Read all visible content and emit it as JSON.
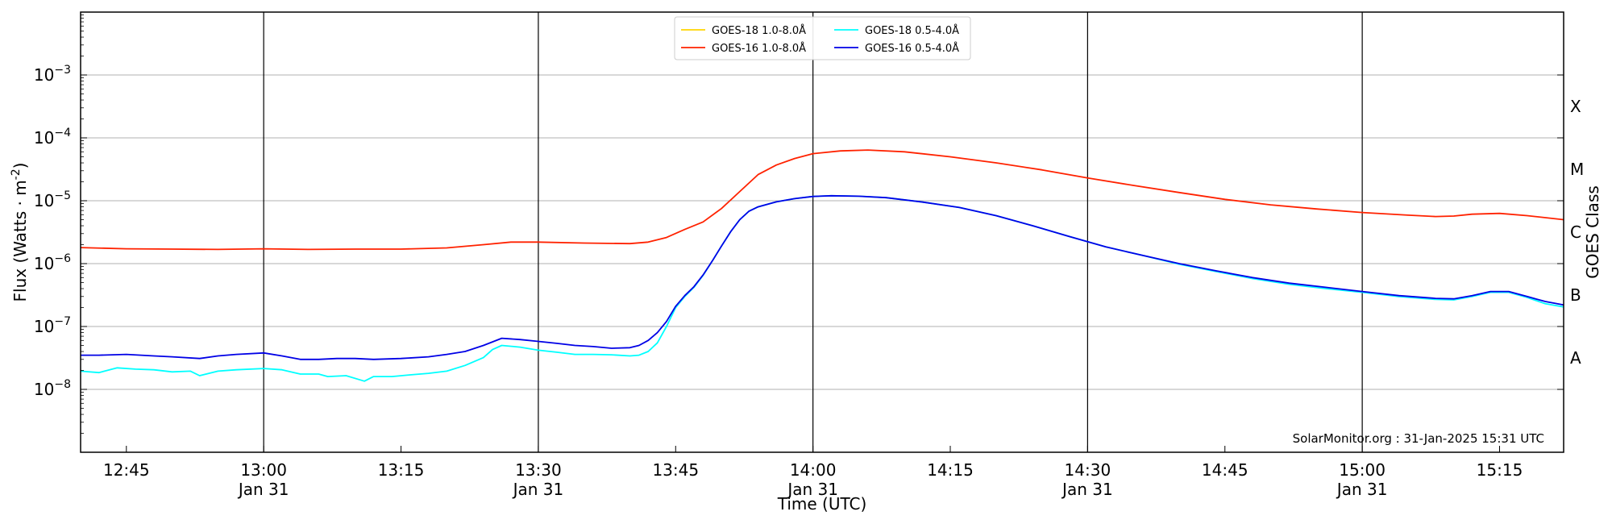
{
  "chart_data": {
    "type": "line",
    "xlabel": "Time (UTC)",
    "ylabel": "Flux (Watts · m",
    "ylabel_sup": "-2",
    "ylabel_close": ")",
    "right_label": "GOES Class",
    "xlim": [
      "12:40",
      "15:22"
    ],
    "ylim": [
      1e-09,
      0.01
    ],
    "yscale": "log",
    "grid": "horizontal",
    "legend_position": "top-center",
    "credit": "SolarMonitor.org : 31-Jan-2025 15:31 UTC",
    "x_ticks": [
      {
        "time": "12:45",
        "label": "12:45",
        "date": ""
      },
      {
        "time": "13:00",
        "label": "13:00",
        "date": "Jan 31"
      },
      {
        "time": "13:15",
        "label": "13:15",
        "date": ""
      },
      {
        "time": "13:30",
        "label": "13:30",
        "date": "Jan 31"
      },
      {
        "time": "13:45",
        "label": "13:45",
        "date": ""
      },
      {
        "time": "14:00",
        "label": "14:00",
        "date": "Jan 31"
      },
      {
        "time": "14:15",
        "label": "14:15",
        "date": ""
      },
      {
        "time": "14:30",
        "label": "14:30",
        "date": "Jan 31"
      },
      {
        "time": "14:45",
        "label": "14:45",
        "date": ""
      },
      {
        "time": "15:00",
        "label": "15:00",
        "date": "Jan 31"
      },
      {
        "time": "15:15",
        "label": "15:15",
        "date": ""
      }
    ],
    "y_ticks": [
      {
        "value": 1e-08,
        "base": "10",
        "exp": "−8"
      },
      {
        "value": 1e-07,
        "base": "10",
        "exp": "−7"
      },
      {
        "value": 1e-06,
        "base": "10",
        "exp": "−6"
      },
      {
        "value": 1e-05,
        "base": "10",
        "exp": "−5"
      },
      {
        "value": 0.0001,
        "base": "10",
        "exp": "−4"
      },
      {
        "value": 0.001,
        "base": "10",
        "exp": "−3"
      }
    ],
    "classes": [
      {
        "label": "A",
        "value": 3.16e-08
      },
      {
        "label": "B",
        "value": 3.16e-07
      },
      {
        "label": "C",
        "value": 3.16e-06
      },
      {
        "label": "M",
        "value": 3.16e-05
      },
      {
        "label": "X",
        "value": 0.000316
      }
    ],
    "vlines": [
      "13:00",
      "13:30",
      "14:00",
      "14:30",
      "15:00"
    ],
    "series": [
      {
        "name": "GOES-18 1.0-8.0Å",
        "color": "#ffd400",
        "legend_only": true,
        "points": []
      },
      {
        "name": "GOES-18 0.5-4.0Å",
        "color": "#00ffff",
        "points": [
          [
            "12:40",
            1.95e-08
          ],
          [
            "12:42",
            1.85e-08
          ],
          [
            "12:44",
            2.2e-08
          ],
          [
            "12:46",
            2.1e-08
          ],
          [
            "12:48",
            2.05e-08
          ],
          [
            "12:50",
            1.9e-08
          ],
          [
            "12:52",
            1.95e-08
          ],
          [
            "12:53",
            1.65e-08
          ],
          [
            "12:55",
            1.95e-08
          ],
          [
            "12:57",
            2.05e-08
          ],
          [
            "13:00",
            2.15e-08
          ],
          [
            "13:02",
            2.05e-08
          ],
          [
            "13:04",
            1.75e-08
          ],
          [
            "13:06",
            1.75e-08
          ],
          [
            "13:07",
            1.6e-08
          ],
          [
            "13:09",
            1.65e-08
          ],
          [
            "13:11",
            1.35e-08
          ],
          [
            "13:12",
            1.6e-08
          ],
          [
            "13:14",
            1.6e-08
          ],
          [
            "13:16",
            1.7e-08
          ],
          [
            "13:18",
            1.8e-08
          ],
          [
            "13:20",
            1.95e-08
          ],
          [
            "13:22",
            2.4e-08
          ],
          [
            "13:24",
            3.2e-08
          ],
          [
            "13:25",
            4.3e-08
          ],
          [
            "13:26",
            5e-08
          ],
          [
            "13:28",
            4.7e-08
          ],
          [
            "13:30",
            4.2e-08
          ],
          [
            "13:32",
            3.9e-08
          ],
          [
            "13:34",
            3.6e-08
          ],
          [
            "13:36",
            3.6e-08
          ],
          [
            "13:38",
            3.55e-08
          ],
          [
            "13:40",
            3.4e-08
          ],
          [
            "13:41",
            3.5e-08
          ],
          [
            "13:42",
            4e-08
          ],
          [
            "13:43",
            5.5e-08
          ],
          [
            "13:44",
            1e-07
          ],
          [
            "13:45",
            2e-07
          ],
          [
            "13:46",
            3e-07
          ],
          [
            "13:47",
            4.2e-07
          ],
          [
            "13:48",
            6.5e-07
          ],
          [
            "13:49",
            1.1e-06
          ],
          [
            "13:50",
            1.9e-06
          ],
          [
            "13:51",
            3.2e-06
          ],
          [
            "13:52",
            5e-06
          ],
          [
            "13:53",
            6.8e-06
          ],
          [
            "13:54",
            8e-06
          ],
          [
            "13:56",
            9.6e-06
          ],
          [
            "13:58",
            1.08e-05
          ],
          [
            "14:00",
            1.17e-05
          ],
          [
            "14:02",
            1.2e-05
          ],
          [
            "14:05",
            1.18e-05
          ],
          [
            "14:08",
            1.12e-05
          ],
          [
            "14:12",
            9.5e-06
          ],
          [
            "14:16",
            7.8e-06
          ],
          [
            "14:20",
            5.8e-06
          ],
          [
            "14:24",
            4e-06
          ],
          [
            "14:28",
            2.7e-06
          ],
          [
            "14:32",
            1.85e-06
          ],
          [
            "14:36",
            1.35e-06
          ],
          [
            "14:40",
            9.8e-07
          ],
          [
            "14:44",
            7.5e-07
          ],
          [
            "14:48",
            5.8e-07
          ],
          [
            "14:52",
            4.7e-07
          ],
          [
            "14:56",
            4e-07
          ],
          [
            "15:00",
            3.5e-07
          ],
          [
            "15:04",
            3e-07
          ],
          [
            "15:08",
            2.7e-07
          ],
          [
            "15:10",
            2.65e-07
          ],
          [
            "15:12",
            3e-07
          ],
          [
            "15:14",
            3.5e-07
          ],
          [
            "15:16",
            3.5e-07
          ],
          [
            "15:18",
            2.9e-07
          ],
          [
            "15:20",
            2.3e-07
          ],
          [
            "15:22",
            2.05e-07
          ]
        ]
      },
      {
        "name": "GOES-16 1.0-8.0Å",
        "color": "#ff2200",
        "points": [
          [
            "12:40",
            1.8e-06
          ],
          [
            "12:45",
            1.72e-06
          ],
          [
            "12:50",
            1.7e-06
          ],
          [
            "12:55",
            1.68e-06
          ],
          [
            "13:00",
            1.72e-06
          ],
          [
            "13:05",
            1.68e-06
          ],
          [
            "13:10",
            1.7e-06
          ],
          [
            "13:15",
            1.7e-06
          ],
          [
            "13:20",
            1.78e-06
          ],
          [
            "13:24",
            2e-06
          ],
          [
            "13:27",
            2.2e-06
          ],
          [
            "13:30",
            2.2e-06
          ],
          [
            "13:35",
            2.12e-06
          ],
          [
            "13:40",
            2.08e-06
          ],
          [
            "13:42",
            2.2e-06
          ],
          [
            "13:44",
            2.6e-06
          ],
          [
            "13:46",
            3.5e-06
          ],
          [
            "13:48",
            4.6e-06
          ],
          [
            "13:50",
            7.5e-06
          ],
          [
            "13:52",
            1.4e-05
          ],
          [
            "13:54",
            2.6e-05
          ],
          [
            "13:56",
            3.7e-05
          ],
          [
            "13:58",
            4.7e-05
          ],
          [
            "14:00",
            5.6e-05
          ],
          [
            "14:03",
            6.2e-05
          ],
          [
            "14:06",
            6.4e-05
          ],
          [
            "14:10",
            6e-05
          ],
          [
            "14:15",
            5e-05
          ],
          [
            "14:20",
            4e-05
          ],
          [
            "14:25",
            3.1e-05
          ],
          [
            "14:30",
            2.3e-05
          ],
          [
            "14:35",
            1.75e-05
          ],
          [
            "14:40",
            1.35e-05
          ],
          [
            "14:45",
            1.05e-05
          ],
          [
            "14:50",
            8.6e-06
          ],
          [
            "14:55",
            7.4e-06
          ],
          [
            "15:00",
            6.5e-06
          ],
          [
            "15:05",
            5.9e-06
          ],
          [
            "15:08",
            5.6e-06
          ],
          [
            "15:10",
            5.7e-06
          ],
          [
            "15:12",
            6.1e-06
          ],
          [
            "15:15",
            6.3e-06
          ],
          [
            "15:18",
            5.8e-06
          ],
          [
            "15:22",
            5e-06
          ]
        ]
      },
      {
        "name": "GOES-16 0.5-4.0Å",
        "color": "#0000e6",
        "points": [
          [
            "12:40",
            3.5e-08
          ],
          [
            "12:42",
            3.5e-08
          ],
          [
            "12:45",
            3.6e-08
          ],
          [
            "12:48",
            3.4e-08
          ],
          [
            "12:50",
            3.3e-08
          ],
          [
            "12:53",
            3.1e-08
          ],
          [
            "12:55",
            3.4e-08
          ],
          [
            "12:57",
            3.6e-08
          ],
          [
            "13:00",
            3.8e-08
          ],
          [
            "13:02",
            3.4e-08
          ],
          [
            "13:04",
            3e-08
          ],
          [
            "13:06",
            3e-08
          ],
          [
            "13:08",
            3.1e-08
          ],
          [
            "13:10",
            3.1e-08
          ],
          [
            "13:12",
            3e-08
          ],
          [
            "13:15",
            3.1e-08
          ],
          [
            "13:18",
            3.3e-08
          ],
          [
            "13:20",
            3.6e-08
          ],
          [
            "13:22",
            4e-08
          ],
          [
            "13:24",
            5e-08
          ],
          [
            "13:26",
            6.5e-08
          ],
          [
            "13:28",
            6.2e-08
          ],
          [
            "13:30",
            5.8e-08
          ],
          [
            "13:32",
            5.4e-08
          ],
          [
            "13:34",
            5e-08
          ],
          [
            "13:36",
            4.8e-08
          ],
          [
            "13:38",
            4.5e-08
          ],
          [
            "13:40",
            4.6e-08
          ],
          [
            "13:41",
            5e-08
          ],
          [
            "13:42",
            6e-08
          ],
          [
            "13:43",
            8e-08
          ],
          [
            "13:44",
            1.2e-07
          ],
          [
            "13:45",
            2.1e-07
          ],
          [
            "13:46",
            3.1e-07
          ],
          [
            "13:47",
            4.3e-07
          ],
          [
            "13:48",
            6.6e-07
          ],
          [
            "13:49",
            1.1e-06
          ],
          [
            "13:50",
            1.9e-06
          ],
          [
            "13:51",
            3.2e-06
          ],
          [
            "13:52",
            5e-06
          ],
          [
            "13:53",
            6.8e-06
          ],
          [
            "13:54",
            8e-06
          ],
          [
            "13:56",
            9.6e-06
          ],
          [
            "13:58",
            1.08e-05
          ],
          [
            "14:00",
            1.17e-05
          ],
          [
            "14:02",
            1.2e-05
          ],
          [
            "14:05",
            1.18e-05
          ],
          [
            "14:08",
            1.12e-05
          ],
          [
            "14:12",
            9.5e-06
          ],
          [
            "14:16",
            7.8e-06
          ],
          [
            "14:20",
            5.8e-06
          ],
          [
            "14:24",
            4e-06
          ],
          [
            "14:28",
            2.7e-06
          ],
          [
            "14:32",
            1.85e-06
          ],
          [
            "14:36",
            1.35e-06
          ],
          [
            "14:40",
            1e-06
          ],
          [
            "14:44",
            7.7e-07
          ],
          [
            "14:48",
            6e-07
          ],
          [
            "14:52",
            4.9e-07
          ],
          [
            "14:56",
            4.2e-07
          ],
          [
            "15:00",
            3.6e-07
          ],
          [
            "15:04",
            3.1e-07
          ],
          [
            "15:08",
            2.8e-07
          ],
          [
            "15:10",
            2.75e-07
          ],
          [
            "15:12",
            3.1e-07
          ],
          [
            "15:14",
            3.6e-07
          ],
          [
            "15:16",
            3.6e-07
          ],
          [
            "15:18",
            3e-07
          ],
          [
            "15:20",
            2.5e-07
          ],
          [
            "15:22",
            2.2e-07
          ]
        ]
      }
    ]
  }
}
